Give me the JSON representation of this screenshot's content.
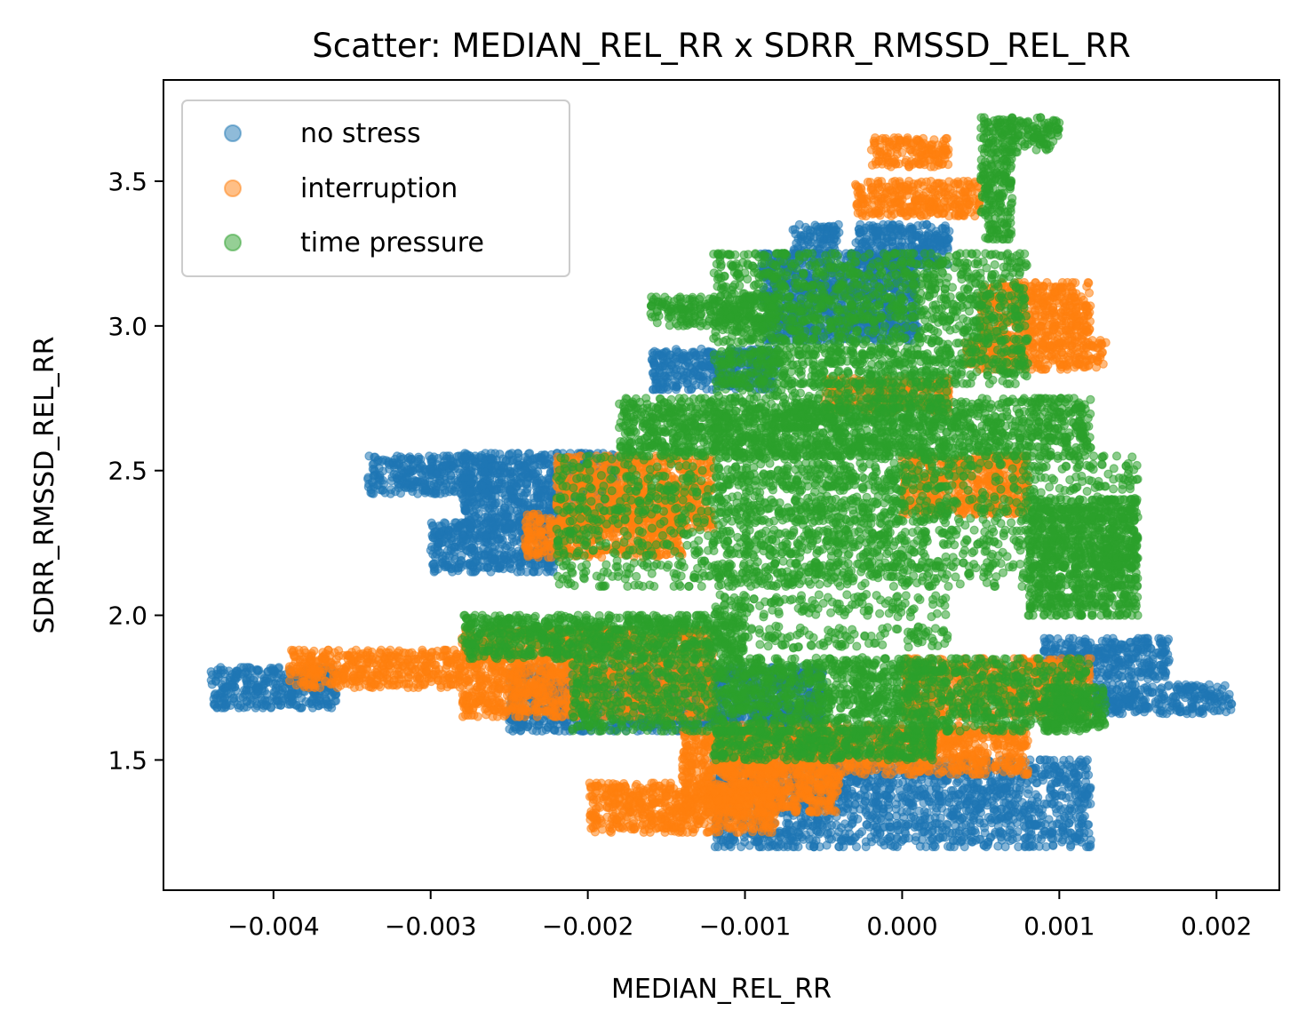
{
  "chart_data": {
    "type": "scatter",
    "title": "Scatter: MEDIAN_REL_RR x SDRR_RMSSD_REL_RR",
    "xlabel": "MEDIAN_REL_RR",
    "ylabel": "SDRR_RMSSD_REL_RR",
    "xlim": [
      -0.0047,
      0.0024
    ],
    "ylim": [
      1.05,
      3.85
    ],
    "xticks": [
      -0.004,
      -0.003,
      -0.002,
      -0.001,
      0.0,
      0.001,
      0.002
    ],
    "xtick_labels": [
      "−0.004",
      "−0.003",
      "−0.002",
      "−0.001",
      "0.000",
      "0.001",
      "0.002"
    ],
    "yticks": [
      1.5,
      2.0,
      2.5,
      3.0,
      3.5
    ],
    "ytick_labels": [
      "1.5",
      "2.0",
      "2.5",
      "3.0",
      "3.5"
    ],
    "grid": false,
    "legend_position": "top-left",
    "series": [
      {
        "name": "no stress",
        "color": "#1f77b4",
        "clusters": [
          {
            "x": [
              -0.0044,
              -0.0036
            ],
            "y": [
              1.68,
              1.82
            ]
          },
          {
            "x": [
              -0.0034,
              -0.0026
            ],
            "y": [
              2.42,
              2.55
            ]
          },
          {
            "x": [
              -0.003,
              -0.0022
            ],
            "y": [
              2.15,
              2.32
            ]
          },
          {
            "x": [
              -0.0028,
              -0.0018
            ],
            "y": [
              2.3,
              2.56
            ]
          },
          {
            "x": [
              -0.0025,
              -0.0005
            ],
            "y": [
              1.6,
              1.82
            ]
          },
          {
            "x": [
              -0.0016,
              -0.0008
            ],
            "y": [
              2.78,
              2.92
            ]
          },
          {
            "x": [
              -0.0007,
              -0.0004
            ],
            "y": [
              3.25,
              3.35
            ]
          },
          {
            "x": [
              -0.0012,
              0.0012
            ],
            "y": [
              1.2,
              1.5
            ]
          },
          {
            "x": [
              -0.0003,
              0.0003
            ],
            "y": [
              3.2,
              3.35
            ]
          },
          {
            "x": [
              0.0009,
              0.0017
            ],
            "y": [
              1.78,
              1.92
            ]
          },
          {
            "x": [
              0.0012,
              0.0021
            ],
            "y": [
              1.66,
              1.76
            ]
          },
          {
            "x": [
              -0.0009,
              0.0001
            ],
            "y": [
              2.95,
              3.25
            ]
          }
        ]
      },
      {
        "name": "interruption",
        "color": "#ff7f0e",
        "clusters": [
          {
            "x": [
              -0.0039,
              -0.0028
            ],
            "y": [
              1.75,
              1.88
            ]
          },
          {
            "x": [
              -0.0028,
              -0.0012
            ],
            "y": [
              1.65,
              1.95
            ]
          },
          {
            "x": [
              -0.0022,
              -0.0012
            ],
            "y": [
              2.3,
              2.55
            ]
          },
          {
            "x": [
              -0.0024,
              -0.0014
            ],
            "y": [
              2.2,
              2.35
            ]
          },
          {
            "x": [
              -0.002,
              -0.0008
            ],
            "y": [
              1.25,
              1.42
            ]
          },
          {
            "x": [
              -0.0014,
              -0.0004
            ],
            "y": [
              1.32,
              1.6
            ]
          },
          {
            "x": [
              -0.0003,
              0.0005
            ],
            "y": [
              3.38,
              3.5
            ]
          },
          {
            "x": [
              0.0005,
              0.0012
            ],
            "y": [
              2.95,
              3.15
            ]
          },
          {
            "x": [
              0.0004,
              0.0013
            ],
            "y": [
              2.85,
              2.95
            ]
          },
          {
            "x": [
              -0.0005,
              0.0003
            ],
            "y": [
              2.7,
              2.82
            ]
          },
          {
            "x": [
              0.0,
              0.0012
            ],
            "y": [
              1.65,
              1.85
            ]
          },
          {
            "x": [
              -0.0012,
              0.0008
            ],
            "y": [
              1.45,
              1.62
            ]
          },
          {
            "x": [
              0.0,
              0.0008
            ],
            "y": [
              2.35,
              2.55
            ]
          },
          {
            "x": [
              -0.0002,
              0.0003
            ],
            "y": [
              3.55,
              3.65
            ]
          }
        ]
      },
      {
        "name": "time pressure",
        "color": "#2ca02c",
        "clusters": [
          {
            "x": [
              0.0005,
              0.001
            ],
            "y": [
              3.6,
              3.72
            ]
          },
          {
            "x": [
              0.0005,
              0.0007
            ],
            "y": [
              3.3,
              3.6
            ]
          },
          {
            "x": [
              -0.0012,
              0.0008
            ],
            "y": [
              2.8,
              3.25
            ]
          },
          {
            "x": [
              -0.0018,
              0.0012
            ],
            "y": [
              2.55,
              2.75
            ]
          },
          {
            "x": [
              -0.0022,
              0.0015
            ],
            "y": [
              2.1,
              2.55
            ]
          },
          {
            "x": [
              -0.0028,
              -0.001
            ],
            "y": [
              1.85,
              2.0
            ]
          },
          {
            "x": [
              -0.0021,
              0.0012
            ],
            "y": [
              1.6,
              1.85
            ]
          },
          {
            "x": [
              -0.0012,
              0.0002
            ],
            "y": [
              1.5,
              1.6
            ]
          },
          {
            "x": [
              -0.0012,
              0.0003
            ],
            "y": [
              1.6,
              2.9
            ]
          },
          {
            "x": [
              0.0008,
              0.0015
            ],
            "y": [
              2.0,
              2.4
            ]
          },
          {
            "x": [
              -0.0016,
              -0.0008
            ],
            "y": [
              3.0,
              3.1
            ]
          },
          {
            "x": [
              0.0009,
              0.0013
            ],
            "y": [
              1.6,
              1.75
            ]
          }
        ]
      }
    ]
  }
}
